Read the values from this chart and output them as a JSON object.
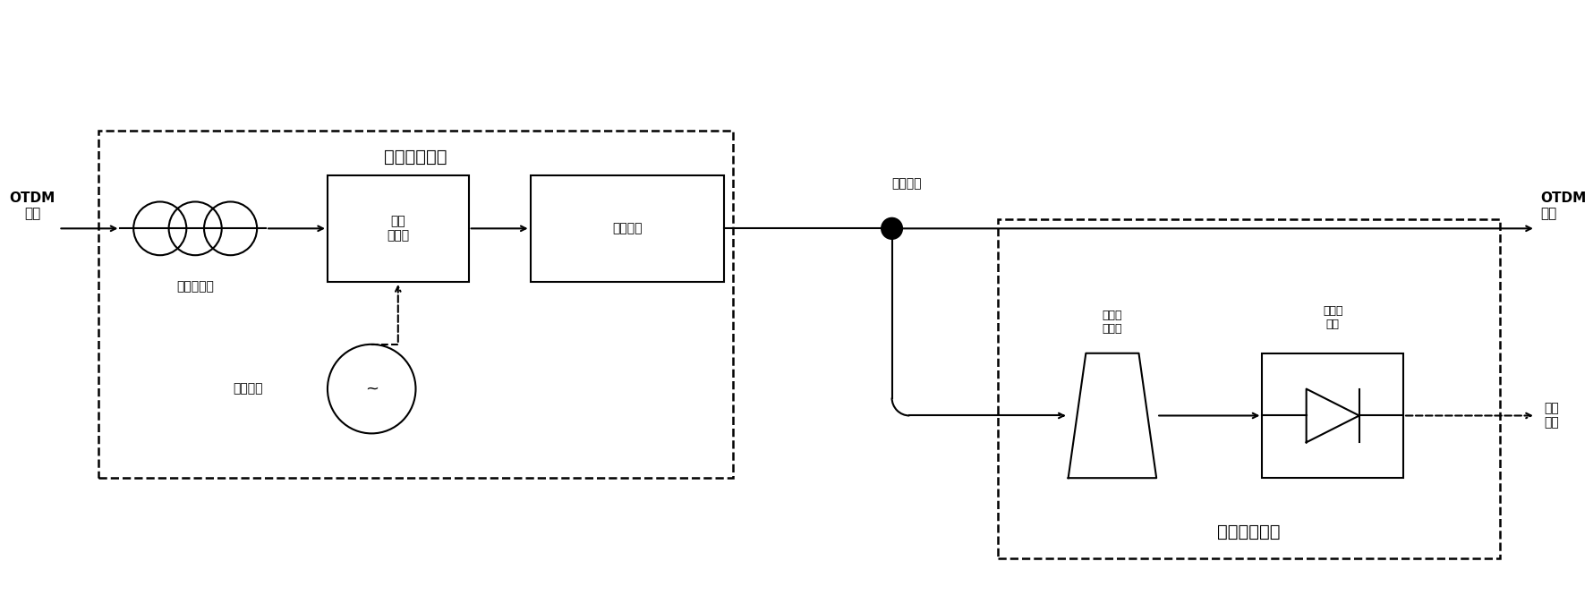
{
  "bg_color": "#ffffff",
  "title": "",
  "fig_width": 17.81,
  "fig_height": 6.75,
  "dpi": 100,
  "labels": {
    "otdm_in": "OTDM\n数据",
    "otdm_out": "OTDM\n数据",
    "polarization_controller": "偏振控制器",
    "phase_modulator": "相位\n调制器",
    "transmission_fiber": "传输光纤",
    "optical_splitter_label": "光功分器",
    "optical_bandpass": "光带通\n滤波器",
    "photodetector": "光电探\n测器",
    "base_clock_in": "基频时钟",
    "base_clock_out": "基频\n时钟",
    "clock_insertion_unit": "时钟置入单元",
    "clock_extraction_unit": "时钟提取单元"
  },
  "colors": {
    "line": "#000000",
    "box": "#000000",
    "dashed": "#000000",
    "fill": "#ffffff",
    "dot": "#000000"
  }
}
